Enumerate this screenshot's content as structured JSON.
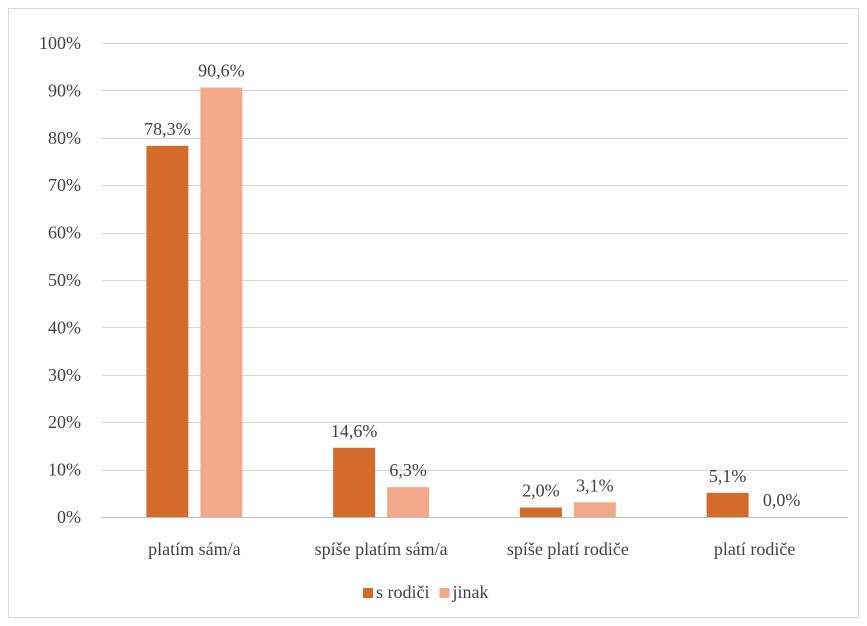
{
  "chart_data": {
    "type": "bar",
    "title": "",
    "xlabel": "",
    "ylabel": "",
    "categories": [
      "platím sám/a",
      "spíše platím sám/a",
      "spíše platí rodiče",
      "platí rodiče"
    ],
    "series": [
      {
        "name": "s rodiči",
        "color": "#d46b2a",
        "values": [
          78.3,
          14.6,
          2.0,
          5.1
        ],
        "labels": [
          "78,3%",
          "14,6%",
          "2,0%",
          "5,1%"
        ]
      },
      {
        "name": "jinak",
        "color": "#f2a98b",
        "values": [
          90.6,
          6.3,
          3.1,
          0.0
        ],
        "labels": [
          "90,6%",
          "6,3%",
          "3,1%",
          "0,0%"
        ]
      }
    ],
    "ylim": [
      0,
      100
    ],
    "yticks": [
      0,
      10,
      20,
      30,
      40,
      50,
      60,
      70,
      80,
      90,
      100
    ],
    "ytick_labels": [
      "0%",
      "10%",
      "20%",
      "30%",
      "40%",
      "50%",
      "60%",
      "70%",
      "80%",
      "90%",
      "100%"
    ],
    "grid": true,
    "legend_position": "bottom"
  }
}
